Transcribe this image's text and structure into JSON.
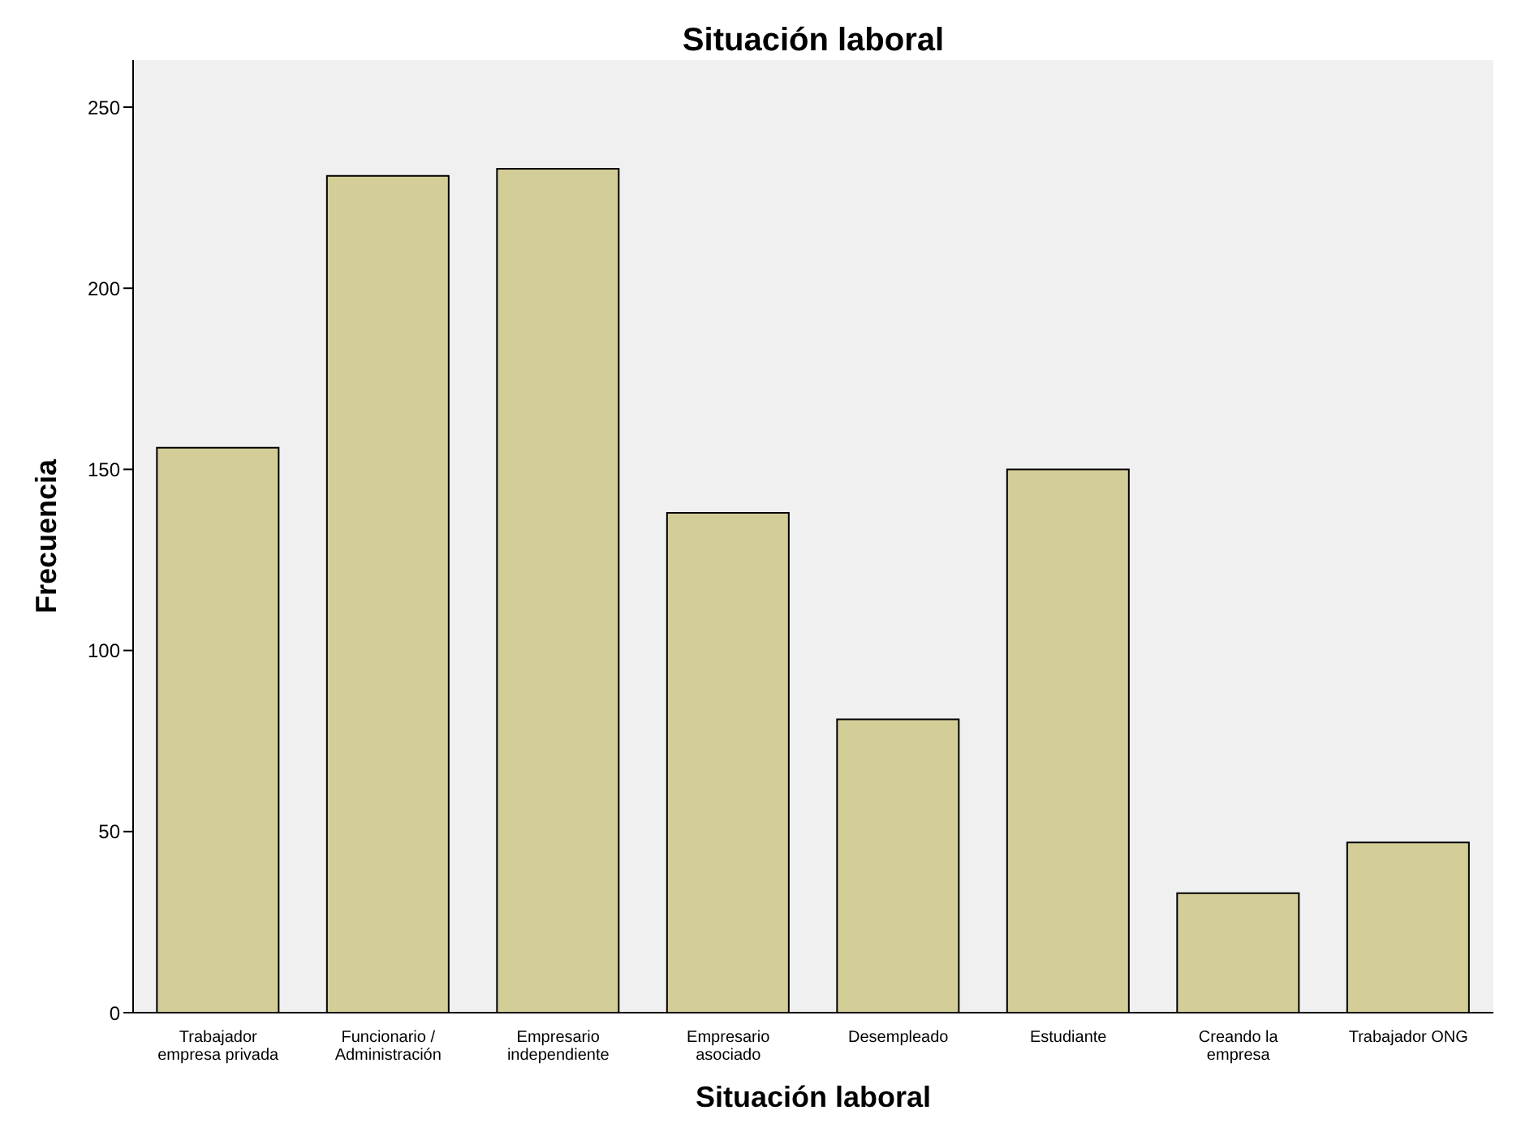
{
  "chart_data": {
    "type": "bar",
    "title": "Situación laboral",
    "xlabel": "Situación laboral",
    "ylabel": "Frecuencia",
    "categories": [
      "Trabajador empresa privada",
      "Funcionario / Administración",
      "Empresario independiente",
      "Empresario asociado",
      "Desempleado",
      "Estudiante",
      "Creando la empresa",
      "Trabajador ONG"
    ],
    "values": [
      156,
      231,
      233,
      138,
      81,
      150,
      33,
      47
    ],
    "color": "#d3ce97",
    "ylim": [
      0,
      263
    ],
    "yticks": [
      0,
      50,
      100,
      150,
      200,
      250
    ],
    "grid": false
  }
}
